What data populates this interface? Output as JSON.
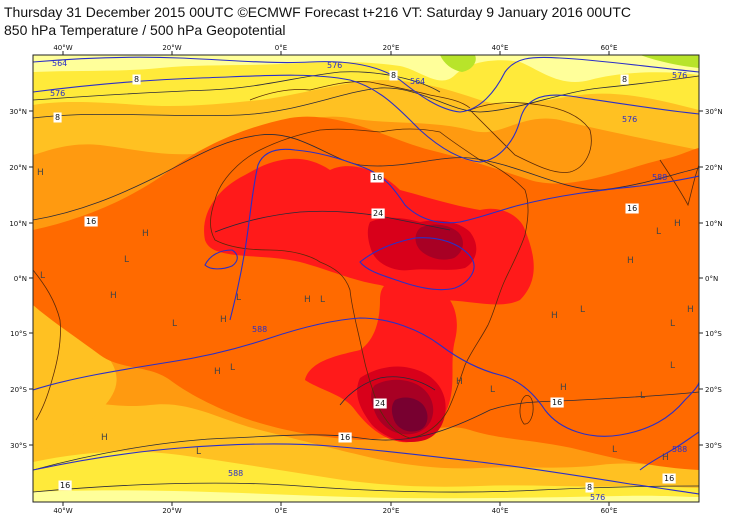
{
  "header": {
    "line1": "Thursday 31 December 2015 00UTC ©ECMWF Forecast t+216 VT: Saturday 9 January 2016 00UTC",
    "line2": "850 hPa Temperature / 500 hPa Geopotential"
  },
  "axes": {
    "lon_labels": [
      "40°W",
      "20°W",
      "0°E",
      "20°E",
      "40°E",
      "60°E"
    ],
    "lat_labels": [
      "30°N",
      "20°N",
      "10°N",
      "0°N",
      "10°S",
      "20°S",
      "30°S"
    ]
  },
  "colors": {
    "pale_yellow": "#ffff9a",
    "yellow": "#ffea3a",
    "light_orange": "#ffc122",
    "orange": "#ff9a10",
    "dark_orange": "#ff6a00",
    "red": "#ff1a1a",
    "crimson": "#d8001a",
    "dark_red": "#a80024",
    "maroon": "#780030",
    "green": "#b8e42a",
    "geopotential_line": "#2b2fc8",
    "isotherm_line": "#2a2a3a",
    "coastline": "#5a2a0a"
  },
  "geopotential_labels": [
    "564",
    "576",
    "576",
    "564",
    "576",
    "576",
    "588",
    "588",
    "588",
    "576",
    "588"
  ],
  "temperature_labels": [
    "8",
    "8",
    "8",
    "8",
    "16",
    "16",
    "24",
    "24",
    "16",
    "16",
    "16",
    "16",
    "8",
    "16"
  ],
  "pressure_markers": [
    "H",
    "L",
    "H",
    "L",
    "H",
    "L",
    "H",
    "L",
    "H",
    "L",
    "H",
    "L",
    "H",
    "L",
    "H",
    "L",
    "H",
    "L",
    "H",
    "L",
    "H",
    "L",
    "H",
    "L",
    "H",
    "L",
    "L",
    "H"
  ]
}
